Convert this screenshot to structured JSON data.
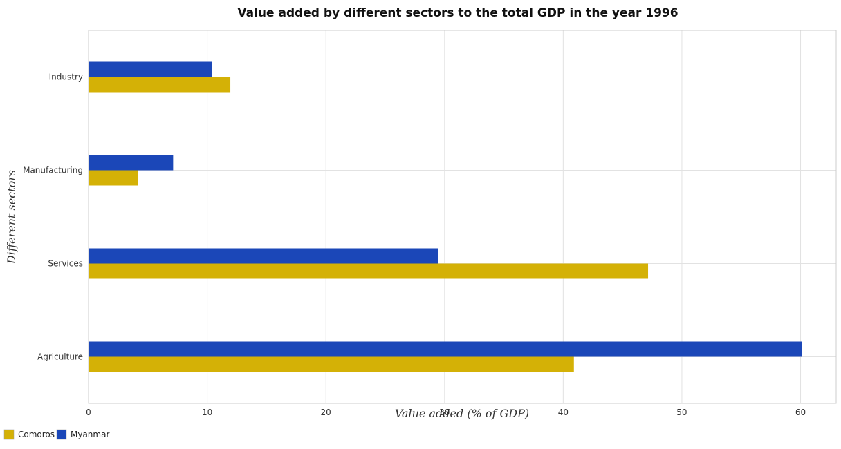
{
  "chart_data": {
    "type": "bar",
    "orientation": "horizontal",
    "title": "Value added by different sectors to the total GDP in the year 1996",
    "xlabel": "Value added (% of GDP)",
    "ylabel": "Different sectors",
    "categories": [
      "Industry",
      "Manufacturing",
      "Services",
      "Agriculture"
    ],
    "series": [
      {
        "name": "Comoros",
        "color": "#d4b106",
        "values": [
          11.95,
          4.15,
          47.15,
          40.9
        ]
      },
      {
        "name": "Myanmar",
        "color": "#1b47b8",
        "values": [
          10.43,
          7.13,
          29.47,
          60.1
        ]
      }
    ],
    "xlim": [
      0,
      63
    ],
    "xticks": [
      0,
      10,
      20,
      30,
      40,
      50,
      60
    ],
    "xtick_labels": [
      "0",
      "10",
      "20",
      "30",
      "40",
      "50",
      "60"
    ],
    "grid": true,
    "legend_position": "bottom-left"
  }
}
